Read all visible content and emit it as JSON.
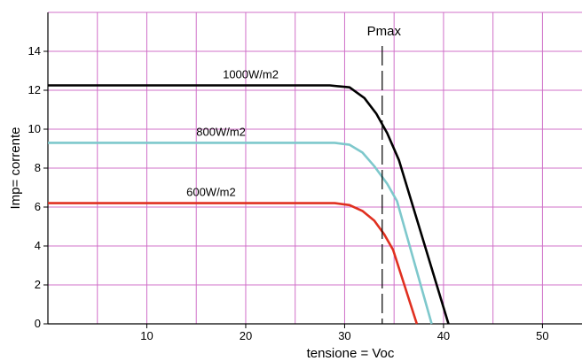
{
  "chart_data": {
    "type": "line",
    "xlabel": "tensione = Voc",
    "ylabel": "Imp= corrente",
    "xlim": [
      0,
      54
    ],
    "ylim": [
      0,
      16
    ],
    "x_ticks": [
      10,
      20,
      30,
      40,
      50
    ],
    "x_tick_labels": [
      "10",
      "20",
      "30",
      "40",
      "50"
    ],
    "y_ticks": [
      0,
      2,
      4,
      6,
      8,
      10,
      12,
      14
    ],
    "y_tick_labels": [
      "0",
      "2",
      "4",
      "6",
      "8",
      "10",
      "12",
      "14"
    ],
    "grid": true,
    "grid_color": "#d070c8",
    "series": [
      {
        "name": "1000W/m2",
        "color": "#000000",
        "points": [
          [
            0,
            12.25
          ],
          [
            28.5,
            12.25
          ],
          [
            30.5,
            12.15
          ],
          [
            32,
            11.6
          ],
          [
            33.2,
            10.8
          ],
          [
            34.3,
            9.8
          ],
          [
            35.5,
            8.4
          ],
          [
            40.5,
            0
          ]
        ]
      },
      {
        "name": "800W/m2",
        "color": "#7ec8cc",
        "points": [
          [
            0,
            9.3
          ],
          [
            29.0,
            9.3
          ],
          [
            30.5,
            9.2
          ],
          [
            31.8,
            8.8
          ],
          [
            33.0,
            8.1
          ],
          [
            34.3,
            7.2
          ],
          [
            35.3,
            6.3
          ],
          [
            38.8,
            0
          ]
        ]
      },
      {
        "name": "600W/m2",
        "color": "#e03020",
        "points": [
          [
            0,
            6.2
          ],
          [
            29.0,
            6.2
          ],
          [
            30.5,
            6.1
          ],
          [
            31.8,
            5.8
          ],
          [
            33.0,
            5.3
          ],
          [
            34.0,
            4.6
          ],
          [
            34.9,
            3.8
          ],
          [
            37.3,
            0
          ]
        ]
      }
    ],
    "annotations": [
      {
        "text": "Pmax",
        "x": 33.8,
        "line": "dashed-vertical"
      }
    ]
  }
}
